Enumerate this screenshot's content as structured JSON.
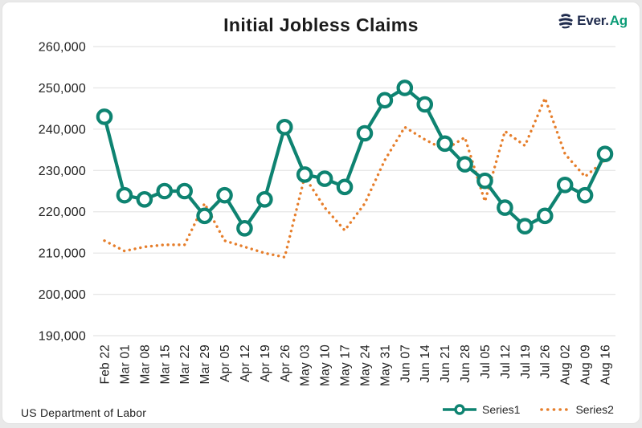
{
  "header": {
    "title": "Initial Jobless Claims",
    "logo": {
      "icon": "everag-globe-icon",
      "brand_prefix": "Ever.",
      "brand_suffix": "Ag",
      "icon_color": "#1F2B4D",
      "prefix_color": "#1F2B4D",
      "suffix_color": "#0C9C77"
    }
  },
  "footer": {
    "source": "US Department of Labor"
  },
  "chart_data": {
    "type": "line",
    "title": "Initial Jobless Claims",
    "categories": [
      "Feb 22",
      "Mar 01",
      "Mar 08",
      "Mar 15",
      "Mar 22",
      "Mar 29",
      "Apr 05",
      "Apr 12",
      "Apr 19",
      "Apr 26",
      "May 03",
      "May 10",
      "May 17",
      "May 24",
      "May 31",
      "Jun 07",
      "Jun 14",
      "Jun 21",
      "Jun 28",
      "Jul 05",
      "Jul 12",
      "Jul 19",
      "Jul 26",
      "Aug 02",
      "Aug 09",
      "Aug 16"
    ],
    "series": [
      {
        "name": "Series1",
        "style": "solid line with white-filled circle markers",
        "color": "#0E8371",
        "values": [
          243000,
          224000,
          223000,
          225000,
          225000,
          219000,
          224000,
          216000,
          223000,
          240500,
          229000,
          228000,
          226000,
          239000,
          247000,
          250000,
          246000,
          236500,
          231500,
          227500,
          221000,
          216500,
          219000,
          226500,
          224000,
          234000
        ]
      },
      {
        "name": "Series2",
        "style": "dotted line",
        "color": "#E67E2B",
        "values": [
          213000,
          210500,
          211500,
          212000,
          212000,
          222000,
          213000,
          211500,
          210000,
          209000,
          228500,
          221000,
          215500,
          222000,
          232500,
          240500,
          237500,
          235000,
          238000,
          222500,
          239500,
          236000,
          247500,
          234000,
          228500,
          232500
        ]
      }
    ],
    "ylim": [
      190000,
      260000
    ],
    "ytick_step": 10000,
    "yticks": [
      {
        "value": 260000,
        "label": "260,000"
      },
      {
        "value": 250000,
        "label": "250,000"
      },
      {
        "value": 240000,
        "label": "240,000"
      },
      {
        "value": 230000,
        "label": "230,000"
      },
      {
        "value": 220000,
        "label": "220,000"
      },
      {
        "value": 210000,
        "label": "210,000"
      },
      {
        "value": 200000,
        "label": "200,000"
      },
      {
        "value": 190000,
        "label": "190,000"
      }
    ],
    "grid": "horizontal",
    "legend_position": "bottom-right",
    "x_labels_rotation": "vertical",
    "source": "US Department of Labor"
  }
}
